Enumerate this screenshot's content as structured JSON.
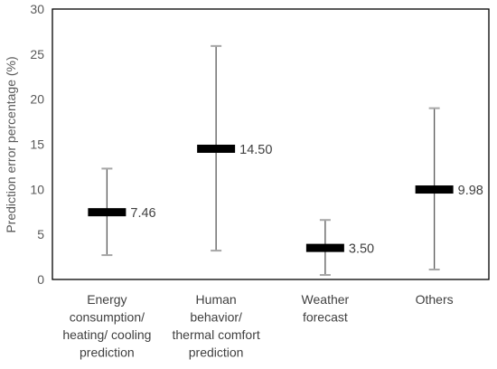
{
  "chart_data": {
    "type": "errorbar",
    "ylabel": "Prediction error percentage (%)",
    "ylim": [
      0,
      30
    ],
    "yticks": [
      0,
      5,
      10,
      15,
      20,
      25,
      30
    ],
    "grid": false,
    "categories": [
      [
        "Energy",
        "consumption/",
        "heating/ cooling",
        "prediction"
      ],
      [
        "Human",
        "behavior/",
        "thermal comfort",
        "prediction"
      ],
      [
        "Weather",
        "forecast"
      ],
      [
        "Others"
      ]
    ],
    "values": [
      7.46,
      14.5,
      3.5,
      9.98
    ],
    "value_labels": [
      "7.46",
      "14.50",
      "3.50",
      "9.98"
    ],
    "lower": [
      2.7,
      3.2,
      0.5,
      1.1
    ],
    "upper": [
      12.3,
      25.9,
      6.6,
      19.0
    ],
    "colors": {
      "mean_marker": "#000000",
      "error_bar": "#595959",
      "cap": "#a6a6a6",
      "axis": "#000000"
    }
  }
}
